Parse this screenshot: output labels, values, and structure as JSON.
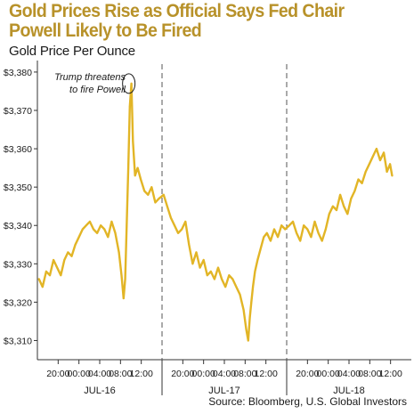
{
  "title": "Gold Prices Rise as Official Says Fed Chair Powell Likely to Be Fired",
  "subtitle": "Gold Price Per Ounce",
  "source": "Source: Bloomberg, U.S. Global Investors",
  "colors": {
    "series": "#e2b526",
    "title": "#b8922a",
    "axis": "#333333"
  },
  "chart_data": {
    "type": "line",
    "title": "",
    "xlabel": "",
    "ylabel": "",
    "ylim": [
      3305,
      3383
    ],
    "y_ticks": [
      3310,
      3320,
      3330,
      3340,
      3350,
      3360,
      3370,
      3380
    ],
    "y_tick_labels": [
      "$3,310",
      "$3,320",
      "$3,330",
      "$3,340",
      "$3,350",
      "$3,360",
      "$3,370",
      "$3,380"
    ],
    "x_unit": "hours since JUL-16 16:00",
    "xlim": [
      0,
      72
    ],
    "x_ticks": [
      {
        "x": 4,
        "label": "20:00"
      },
      {
        "x": 8,
        "label": "00:00"
      },
      {
        "x": 12,
        "label": "04:00"
      },
      {
        "x": 16,
        "label": "08:00"
      },
      {
        "x": 20,
        "label": "12:00"
      },
      {
        "x": 28,
        "label": "20:00"
      },
      {
        "x": 32,
        "label": "00:00"
      },
      {
        "x": 36,
        "label": "04:00"
      },
      {
        "x": 40,
        "label": "08:00"
      },
      {
        "x": 44,
        "label": "12:00"
      },
      {
        "x": 52,
        "label": "20:00"
      },
      {
        "x": 56,
        "label": "00:00"
      },
      {
        "x": 60,
        "label": "04:00"
      },
      {
        "x": 64,
        "label": "08:00"
      },
      {
        "x": 68,
        "label": "12:00"
      }
    ],
    "day_labels": [
      {
        "x": 12,
        "label": "JUL-16"
      },
      {
        "x": 36,
        "label": "JUL-17"
      },
      {
        "x": 60,
        "label": "JUL-18"
      }
    ],
    "day_dividers": [
      24,
      48
    ],
    "annotation": {
      "text_lines": [
        "Trump threatens",
        "to fire Powell"
      ],
      "x": 17.6,
      "y": 3377
    },
    "series": [
      {
        "name": "",
        "x": [
          0.3,
          1.0,
          1.7,
          2.4,
          3.1,
          3.8,
          4.5,
          5.2,
          5.9,
          6.6,
          7.3,
          8.0,
          8.7,
          9.4,
          10.1,
          10.8,
          11.5,
          12.2,
          12.9,
          13.6,
          14.3,
          15.0,
          15.7,
          16.2,
          16.6,
          16.9,
          17.2,
          17.5,
          17.8,
          18.1,
          18.4,
          18.8,
          19.3,
          19.9,
          20.6,
          21.3,
          22.0,
          22.7,
          23.4,
          24.3,
          25.0,
          25.7,
          26.4,
          27.1,
          27.8,
          28.5,
          29.2,
          29.9,
          30.6,
          31.3,
          32.0,
          32.7,
          33.4,
          34.1,
          34.8,
          35.5,
          36.2,
          36.9,
          37.6,
          38.3,
          39.0,
          39.7,
          40.2,
          40.6,
          40.9,
          41.2,
          41.5,
          41.9,
          42.4,
          43.0,
          43.6,
          44.2,
          44.9,
          45.6,
          46.3,
          47.0,
          47.7,
          48.5,
          49.2,
          49.9,
          50.6,
          51.3,
          52.0,
          52.7,
          53.4,
          54.1,
          54.8,
          55.5,
          56.2,
          56.9,
          57.6,
          58.3,
          59.0,
          59.7,
          60.4,
          61.1,
          61.8,
          62.5,
          63.2,
          63.9,
          64.6,
          65.3,
          66.0,
          66.7,
          67.3,
          67.9,
          68.3
        ],
        "values": [
          3326,
          3324,
          3328,
          3327,
          3331,
          3329,
          3327,
          3331,
          3333,
          3332,
          3335,
          3337,
          3339,
          3340,
          3341,
          3339,
          3338,
          3340,
          3339,
          3337,
          3341,
          3338,
          3333,
          3327,
          3321,
          3326,
          3340,
          3355,
          3371,
          3377,
          3362,
          3353,
          3355,
          3352,
          3349,
          3348,
          3350,
          3346,
          3347,
          3348,
          3345,
          3342,
          3340,
          3338,
          3339,
          3341,
          3335,
          3330,
          3333,
          3329,
          3331,
          3327,
          3328,
          3326,
          3329,
          3326,
          3324,
          3327,
          3326,
          3324,
          3322,
          3318,
          3313,
          3310,
          3316,
          3320,
          3324,
          3328,
          3331,
          3334,
          3337,
          3338,
          3336,
          3339,
          3337,
          3340,
          3339,
          3340,
          3341,
          3338,
          3336,
          3340,
          3339,
          3337,
          3341,
          3338,
          3336,
          3339,
          3343,
          3345,
          3344,
          3348,
          3345,
          3343,
          3347,
          3349,
          3352,
          3351,
          3354,
          3356,
          3358,
          3360,
          3357,
          3359,
          3354,
          3356,
          3353
        ]
      }
    ]
  }
}
